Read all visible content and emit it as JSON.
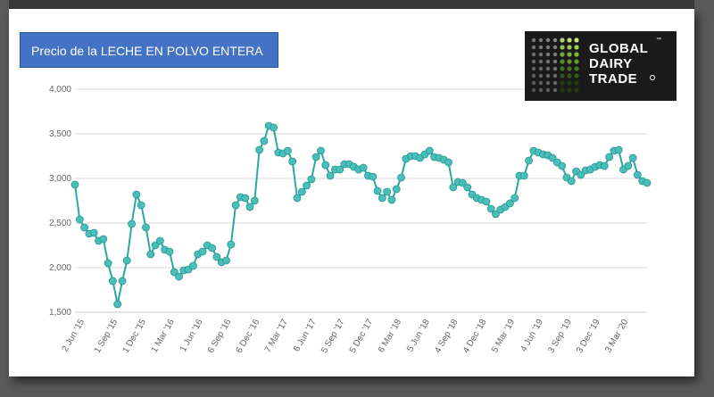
{
  "title": "Precio de la LECHE EN POLVO ENTERA",
  "logo": {
    "line1": "GLOBAL",
    "line2": "DAIRY",
    "line3": "TRADE"
  },
  "colors": {
    "line": "#2aa8a2",
    "marker": "#49bfb9",
    "title_bg": "#4472c4",
    "grid": "#d9d9d9"
  },
  "chart_data": {
    "type": "line",
    "title": "Precio de la LECHE EN POLVO ENTERA",
    "xlabel": "",
    "ylabel": "",
    "ylim": [
      1500,
      4000
    ],
    "yticks": [
      1500,
      2000,
      2500,
      3000,
      3500,
      4000
    ],
    "ytick_labels": [
      "1,500",
      "2,000",
      "2,500",
      "3,000",
      "3,500",
      "4,000"
    ],
    "grid": true,
    "xtick_labels": [
      "2 Jun '15",
      "1 Sep '15",
      "1 Dec '15",
      "1 Mar '16",
      "1 Jun '16",
      "6 Sep '16",
      "6 Dec '16",
      "7 Mar '17",
      "6 Jun '17",
      "5 Sep '17",
      "5 Dec '17",
      "6 Mar '18",
      "5 Jun '18",
      "4 Sep '18",
      "4 Dec '18",
      "5 Mar '19",
      "4 Jun '19",
      "3 Sep '19",
      "3 Dec '19",
      "3 Mar '20"
    ],
    "xtick_index": [
      2,
      9,
      15,
      21,
      27,
      33,
      39,
      45,
      51,
      57,
      63,
      69,
      75,
      81,
      87,
      93,
      99,
      105,
      111,
      117
    ],
    "values": [
      2930,
      2540,
      2450,
      2380,
      2390,
      2300,
      2320,
      2050,
      1850,
      1590,
      1850,
      2080,
      2490,
      2820,
      2700,
      2450,
      2150,
      2250,
      2300,
      2200,
      2180,
      1950,
      1900,
      1970,
      1980,
      2020,
      2150,
      2180,
      2250,
      2220,
      2120,
      2060,
      2080,
      2260,
      2700,
      2790,
      2780,
      2680,
      2750,
      3320,
      3420,
      3590,
      3570,
      3290,
      3280,
      3310,
      3190,
      2780,
      2850,
      2920,
      2990,
      3240,
      3310,
      3150,
      3030,
      3100,
      3100,
      3160,
      3160,
      3130,
      3100,
      3120,
      3030,
      3020,
      2860,
      2780,
      2850,
      2760,
      2880,
      3010,
      3220,
      3250,
      3250,
      3230,
      3270,
      3310,
      3240,
      3230,
      3210,
      3180,
      2900,
      2960,
      2950,
      2900,
      2820,
      2780,
      2760,
      2740,
      2660,
      2600,
      2650,
      2680,
      2720,
      2780,
      3030,
      3030,
      3200,
      3310,
      3290,
      3270,
      3260,
      3230,
      3180,
      3140,
      3010,
      2970,
      3080,
      3040,
      3090,
      3100,
      3130,
      3150,
      3140,
      3240,
      3310,
      3320,
      3100,
      3140,
      3230,
      3040,
      2970,
      2950
    ]
  }
}
